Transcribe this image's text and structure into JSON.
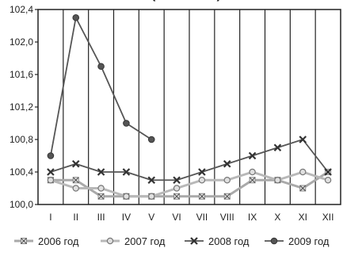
{
  "chart_data": {
    "type": "line",
    "title_partial": "(…  …  … …)",
    "categories": [
      "I",
      "II",
      "III",
      "IV",
      "V",
      "VI",
      "VII",
      "VIII",
      "IX",
      "X",
      "XI",
      "XII"
    ],
    "ylim": [
      100.0,
      102.4
    ],
    "yticks": [
      "100,0",
      "100,4",
      "100,8",
      "101,2",
      "101,6",
      "102,0",
      "102,4"
    ],
    "grid": "vertical",
    "legend_position": "bottom",
    "series": [
      {
        "name": "2006 год",
        "marker": "cross-square",
        "color": "#a9a9a9",
        "values": [
          100.3,
          100.3,
          100.1,
          100.1,
          100.1,
          100.1,
          100.1,
          100.1,
          100.3,
          100.3,
          100.2,
          100.4
        ]
      },
      {
        "name": "2007 год",
        "marker": "circle-open",
        "color": "#b8b8b8",
        "values": [
          100.3,
          100.2,
          100.2,
          100.1,
          100.1,
          100.2,
          100.3,
          100.3,
          100.4,
          100.3,
          100.4,
          100.3
        ]
      },
      {
        "name": "2008 год",
        "marker": "cross-bold",
        "color": "#555555",
        "values": [
          100.4,
          100.5,
          100.4,
          100.4,
          100.3,
          100.3,
          100.4,
          100.5,
          100.6,
          100.7,
          100.8,
          100.4
        ]
      },
      {
        "name": "2009 год",
        "marker": "circle-filled",
        "color": "#555555",
        "values": [
          100.6,
          102.3,
          101.7,
          101.0,
          100.8,
          null,
          null,
          null,
          null,
          null,
          null,
          null
        ]
      }
    ]
  }
}
